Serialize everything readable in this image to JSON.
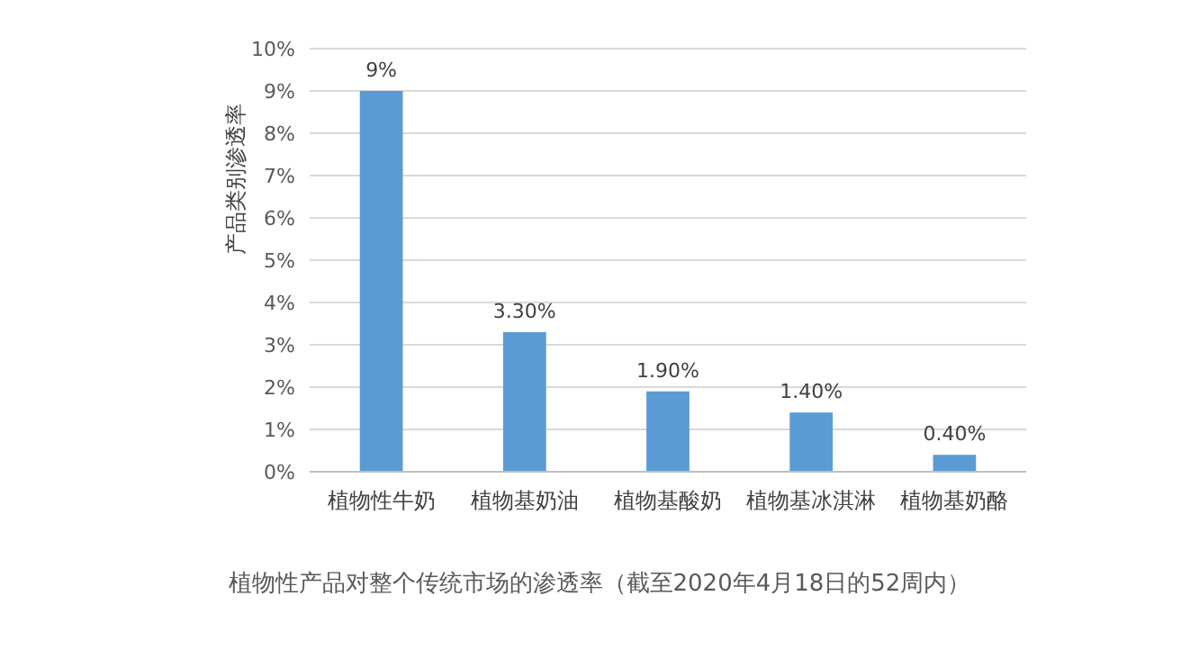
{
  "chart_data": {
    "type": "bar",
    "categories": [
      "植物性牛奶",
      "植物基奶油",
      "植物基酸奶",
      "植物基冰淇淋",
      "植物基奶酪"
    ],
    "values": [
      9,
      3.3,
      1.9,
      1.4,
      0.4
    ],
    "value_labels": [
      "9%",
      "3.30%",
      "1.90%",
      "1.40%",
      "0.40%"
    ],
    "color": "#5b9bd5",
    "ylabel": "产品类别渗透率",
    "ylim": [
      0,
      10
    ],
    "yticks": [
      {
        "value": 0,
        "label": "0%"
      },
      {
        "value": 1,
        "label": "1%"
      },
      {
        "value": 2,
        "label": "2%"
      },
      {
        "value": 3,
        "label": "3%"
      },
      {
        "value": 4,
        "label": "4%"
      },
      {
        "value": 5,
        "label": "5%"
      },
      {
        "value": 6,
        "label": "6%"
      },
      {
        "value": 7,
        "label": "7%"
      },
      {
        "value": 8,
        "label": "8%"
      },
      {
        "value": 9,
        "label": "9%"
      },
      {
        "value": 10,
        "label": "10%"
      }
    ],
    "grid": "y",
    "annotations": [
      "植物性产品对整个传统市场的渗透率（截至2020年4月18日的52周内）"
    ]
  }
}
